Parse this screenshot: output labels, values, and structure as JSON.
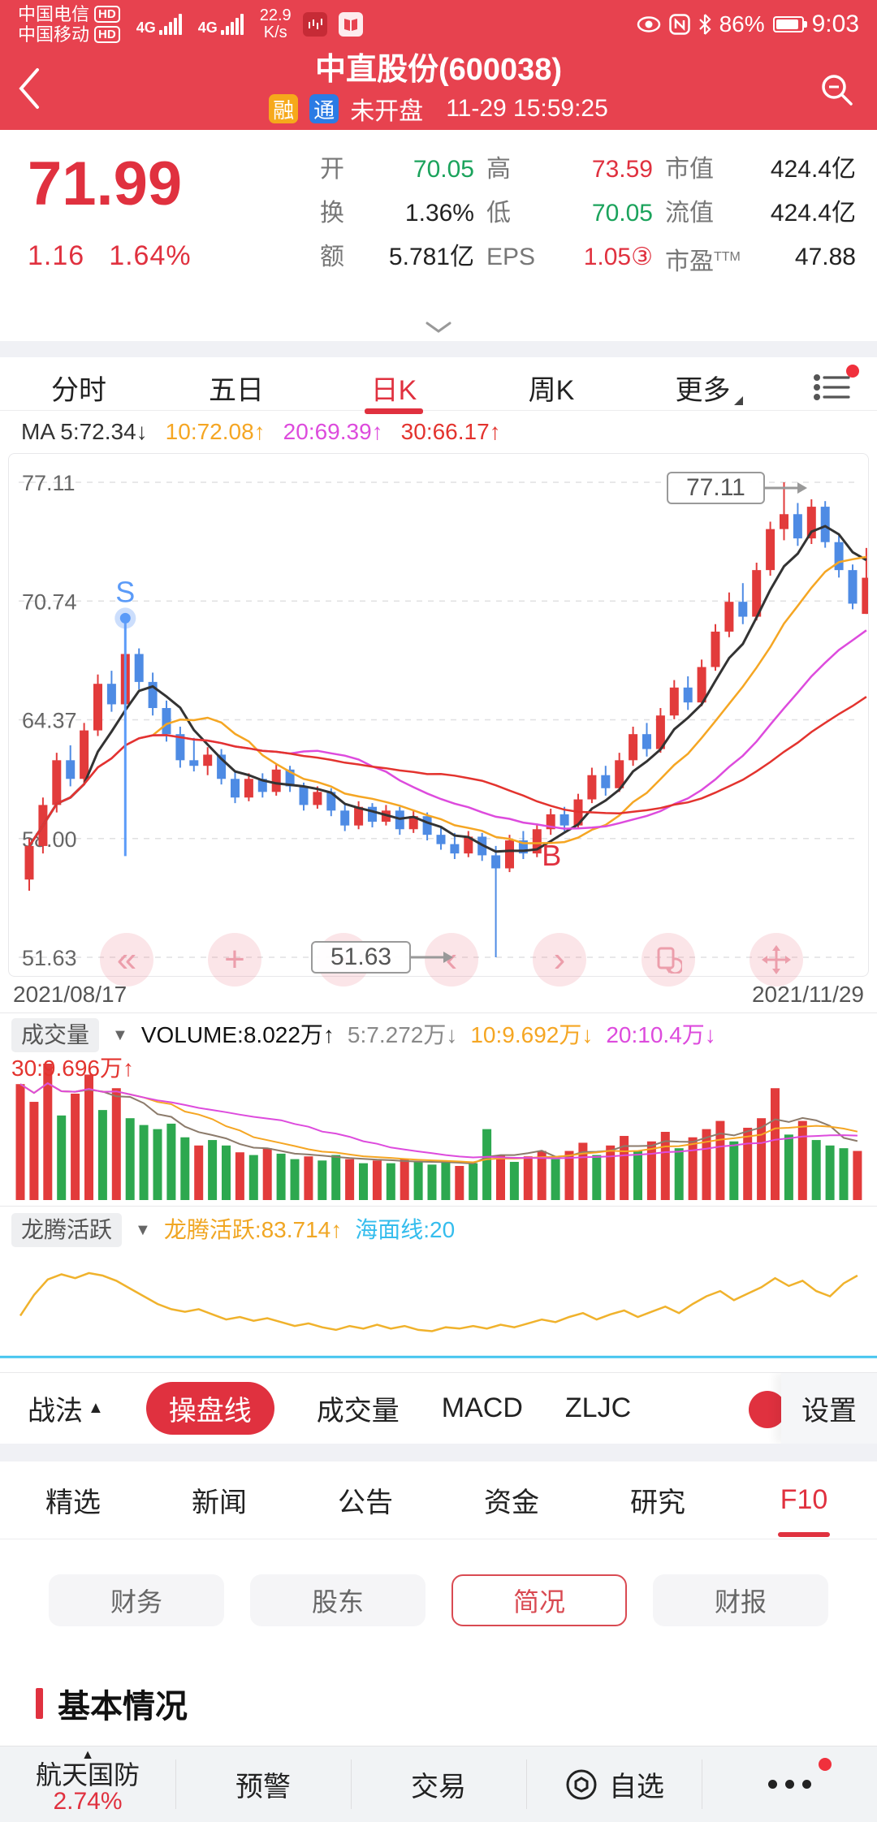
{
  "colors": {
    "accent_red": "#E7424F",
    "text_red": "#E0313F",
    "up_red": "#E23B3B",
    "down_blue": "#4E8BE4",
    "down_green": "#2DA84F",
    "ma5_black": "#333333",
    "ma10_orange": "#F5A623",
    "ma20_magenta": "#DD4BDD",
    "ma30_red": "#E3332E",
    "dragon_yellow": "#F0B22C",
    "sea_cyan": "#45C5EF",
    "marker_blue": "#5B9BF8",
    "green": "#1BA35C"
  },
  "status_bar": {
    "carrier1": "中国电信",
    "carrier2": "中国移动",
    "hd": "HD",
    "net1": "4G",
    "net2": "4G",
    "speed": "22.9",
    "speed_unit": "K/s",
    "battery_pct": "86%",
    "time": "9:03"
  },
  "header": {
    "title": "中直股份(600038)",
    "badge_rong": "融",
    "badge_tong": "通",
    "market_status": "未开盘",
    "datetime": "11-29 15:59:25"
  },
  "quote": {
    "price": "71.99",
    "change": "1.16",
    "change_pct": "1.64%",
    "cols": [
      {
        "rows": [
          {
            "label": "开",
            "value": "70.05"
          },
          {
            "label": "换",
            "value": "1.36%"
          },
          {
            "label": "额",
            "value": "5.781亿"
          }
        ]
      },
      {
        "rows": [
          {
            "label": "高",
            "value": "73.59"
          },
          {
            "label": "低",
            "value": "70.05"
          },
          {
            "label": "EPS",
            "value": "1.05③"
          }
        ]
      },
      {
        "rows": [
          {
            "label": "市值",
            "value": "424.4亿"
          },
          {
            "label": "流值",
            "value": "424.4亿"
          },
          {
            "label": "市盈",
            "sup": "TTM",
            "value": "47.88"
          }
        ]
      }
    ]
  },
  "chart_tabs": {
    "items": [
      "分时",
      "五日",
      "日K",
      "周K",
      "更多"
    ],
    "active": "日K"
  },
  "ma_legend": {
    "prefix": "MA",
    "ma5": "5:72.34↓",
    "ma10": "10:72.08↑",
    "ma20": "20:69.39↑",
    "ma30": "30:66.17↑"
  },
  "chart_data": [
    {
      "type": "candlestick",
      "title": "日K",
      "x_start": "2021/08/17",
      "x_end": "2021/11/29",
      "y_ticks": [
        "77.11",
        "70.74",
        "64.37",
        "58.00",
        "51.63"
      ],
      "y_range": [
        51.63,
        77.11
      ],
      "ma_periods": [
        5,
        10,
        20,
        30
      ],
      "ma_current": {
        "ma5": 72.34,
        "ma10": 72.08,
        "ma20": 69.39,
        "ma30": 66.17
      },
      "markers": {
        "sell": {
          "index": 7,
          "label": "S"
        },
        "buy": {
          "index": 38,
          "label": "B"
        }
      },
      "annotations": {
        "high": {
          "label": "77.11",
          "index": 55
        },
        "low": {
          "label": "51.63",
          "index": 34
        }
      },
      "candles": [
        [
          55.8,
          58.0,
          55.2,
          57.6
        ],
        [
          57.6,
          60.2,
          57.2,
          59.8
        ],
        [
          59.8,
          62.6,
          59.4,
          62.2
        ],
        [
          62.2,
          63.0,
          60.8,
          61.2
        ],
        [
          61.2,
          64.2,
          61.0,
          63.8
        ],
        [
          63.8,
          66.8,
          63.5,
          66.3
        ],
        [
          66.3,
          67.0,
          64.8,
          65.2
        ],
        [
          65.2,
          68.6,
          65.0,
          67.9
        ],
        [
          67.9,
          68.2,
          66.0,
          66.4
        ],
        [
          66.4,
          66.9,
          64.6,
          65.0
        ],
        [
          65.0,
          65.4,
          63.2,
          63.6
        ],
        [
          63.6,
          64.0,
          61.8,
          62.2
        ],
        [
          62.2,
          63.4,
          61.6,
          61.9
        ],
        [
          61.9,
          62.9,
          61.4,
          62.5
        ],
        [
          62.5,
          62.8,
          60.9,
          61.2
        ],
        [
          61.2,
          61.6,
          59.9,
          60.2
        ],
        [
          60.2,
          61.5,
          60.0,
          61.2
        ],
        [
          61.2,
          61.5,
          60.2,
          60.5
        ],
        [
          60.5,
          62.0,
          60.3,
          61.7
        ],
        [
          61.7,
          61.9,
          60.5,
          60.8
        ],
        [
          60.8,
          61.0,
          59.5,
          59.8
        ],
        [
          59.8,
          60.8,
          59.6,
          60.5
        ],
        [
          60.5,
          60.7,
          59.2,
          59.5
        ],
        [
          59.5,
          59.8,
          58.4,
          58.7
        ],
        [
          58.7,
          60.0,
          58.5,
          59.7
        ],
        [
          59.7,
          59.9,
          58.6,
          58.9
        ],
        [
          58.9,
          59.8,
          58.7,
          59.5
        ],
        [
          59.5,
          59.7,
          58.2,
          58.5
        ],
        [
          58.5,
          59.5,
          58.3,
          59.2
        ],
        [
          59.2,
          59.4,
          57.9,
          58.2
        ],
        [
          58.2,
          58.6,
          57.4,
          57.7
        ],
        [
          57.7,
          58.3,
          56.9,
          57.2
        ],
        [
          57.2,
          58.4,
          57.0,
          58.1
        ],
        [
          58.1,
          58.3,
          56.8,
          57.1
        ],
        [
          57.1,
          57.6,
          51.63,
          56.4
        ],
        [
          56.4,
          58.2,
          56.2,
          57.9
        ],
        [
          57.9,
          58.4,
          56.9,
          57.2
        ],
        [
          57.2,
          58.8,
          57.0,
          58.5
        ],
        [
          58.5,
          59.6,
          58.2,
          59.3
        ],
        [
          59.3,
          59.7,
          58.4,
          58.7
        ],
        [
          58.7,
          60.4,
          58.5,
          60.1
        ],
        [
          60.1,
          61.8,
          59.9,
          61.4
        ],
        [
          61.4,
          61.9,
          60.3,
          60.7
        ],
        [
          60.7,
          62.6,
          60.5,
          62.2
        ],
        [
          62.2,
          64.0,
          61.9,
          63.6
        ],
        [
          63.6,
          64.2,
          62.4,
          62.8
        ],
        [
          62.8,
          65.0,
          62.6,
          64.6
        ],
        [
          64.6,
          66.5,
          64.4,
          66.1
        ],
        [
          66.1,
          66.7,
          64.9,
          65.3
        ],
        [
          65.3,
          67.6,
          65.1,
          67.2
        ],
        [
          67.2,
          69.5,
          67.0,
          69.1
        ],
        [
          69.1,
          71.2,
          68.8,
          70.7
        ],
        [
          70.7,
          71.7,
          69.5,
          69.9
        ],
        [
          69.9,
          72.8,
          69.7,
          72.4
        ],
        [
          72.4,
          75.0,
          72.1,
          74.6
        ],
        [
          74.6,
          77.11,
          74.0,
          75.4
        ],
        [
          75.4,
          76.0,
          73.7,
          74.1
        ],
        [
          74.1,
          76.2,
          73.8,
          75.8
        ],
        [
          75.8,
          76.1,
          73.6,
          73.9
        ],
        [
          73.9,
          74.3,
          72.0,
          72.4
        ],
        [
          72.4,
          72.7,
          70.3,
          70.6
        ],
        [
          70.05,
          73.59,
          70.05,
          71.99
        ]
      ]
    },
    {
      "type": "bar",
      "name": "成交量",
      "legend": {
        "volume": "8.022万",
        "ma5": "7.272万",
        "ma10": "9.692万",
        "ma20": "10.4万",
        "ma30": "9.696万"
      },
      "values": [
        0.85,
        0.72,
        1.0,
        0.62,
        0.78,
        0.92,
        0.66,
        0.82,
        0.6,
        0.55,
        0.52,
        0.56,
        0.46,
        0.4,
        0.44,
        0.4,
        0.35,
        0.33,
        0.38,
        0.34,
        0.3,
        0.32,
        0.29,
        0.33,
        0.3,
        0.27,
        0.29,
        0.27,
        0.3,
        0.28,
        0.26,
        0.28,
        0.25,
        0.27,
        0.52,
        0.33,
        0.28,
        0.32,
        0.36,
        0.3,
        0.36,
        0.42,
        0.33,
        0.4,
        0.47,
        0.36,
        0.43,
        0.5,
        0.38,
        0.46,
        0.52,
        0.58,
        0.43,
        0.53,
        0.6,
        0.82,
        0.48,
        0.58,
        0.44,
        0.4,
        0.38,
        0.36
      ]
    },
    {
      "type": "line",
      "name": "龙腾活跃",
      "current": 83.714,
      "sea_line": 20,
      "values": [
        52,
        68,
        80,
        84,
        81,
        85,
        83,
        79,
        73,
        67,
        61,
        57,
        55,
        57,
        53,
        49,
        51,
        48,
        50,
        47,
        44,
        46,
        43,
        41,
        44,
        42,
        45,
        42,
        44,
        41,
        40,
        43,
        42,
        44,
        42,
        45,
        43,
        46,
        49,
        47,
        51,
        54,
        49,
        53,
        56,
        51,
        55,
        59,
        54,
        61,
        67,
        71,
        64,
        69,
        74,
        81,
        75,
        79,
        71,
        67,
        77,
        83
      ]
    }
  ],
  "volume_header": {
    "label": "成交量",
    "main": "VOLUME:8.022万↑",
    "ma5": "5:7.272万↓",
    "ma10": "10:9.692万↓",
    "ma20": "20:10.4万↓",
    "ma30": "30:9.696万↑"
  },
  "dragon_header": {
    "label": "龙腾活跃",
    "main": "龙腾活跃:83.714↑",
    "sea": "海面线:20"
  },
  "indicator_tabs": {
    "zhanfa": "战法",
    "items": [
      "操盘线",
      "成交量",
      "MACD",
      "ZLJC"
    ],
    "active": "操盘线",
    "settings": "设置"
  },
  "f10_nav": {
    "items": [
      "精选",
      "新闻",
      "公告",
      "资金",
      "研究",
      "F10"
    ],
    "active": "F10"
  },
  "detail_pills": {
    "items": [
      "财务",
      "股东",
      "简况",
      "财报"
    ],
    "active": "简况"
  },
  "section_title": "基本情况",
  "bottom_bar": {
    "hot_sector": "航天国防",
    "hot_pct": "2.74%",
    "alert": "预警",
    "trade": "交易",
    "watch": "自选"
  }
}
